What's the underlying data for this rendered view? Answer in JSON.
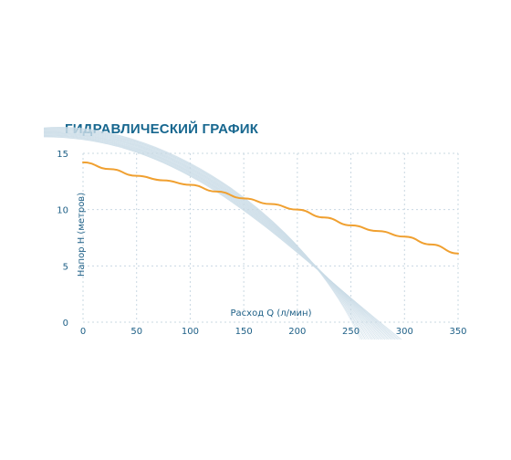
{
  "chart_data": {
    "type": "line",
    "title": "ГИДРАВЛИЧЕСКИЙ ГРАФИК",
    "xlabel": "Расход Q (л/мин)",
    "ylabel": "Напор H (метров)",
    "xlim": [
      0,
      350
    ],
    "ylim": [
      0,
      15
    ],
    "x_ticks": [
      0,
      50,
      100,
      150,
      200,
      250,
      300,
      350
    ],
    "y_ticks": [
      0,
      5,
      10,
      15
    ],
    "grid": true,
    "series": [
      {
        "color": "#f0a030",
        "x": [
          0,
          25,
          50,
          75,
          100,
          125,
          150,
          175,
          200,
          225,
          250,
          275,
          300,
          325,
          350
        ],
        "y": [
          14.2,
          13.6,
          13.0,
          12.6,
          12.2,
          11.6,
          11.0,
          10.5,
          10.0,
          9.3,
          8.6,
          8.1,
          7.6,
          6.9,
          6.1
        ]
      }
    ]
  }
}
